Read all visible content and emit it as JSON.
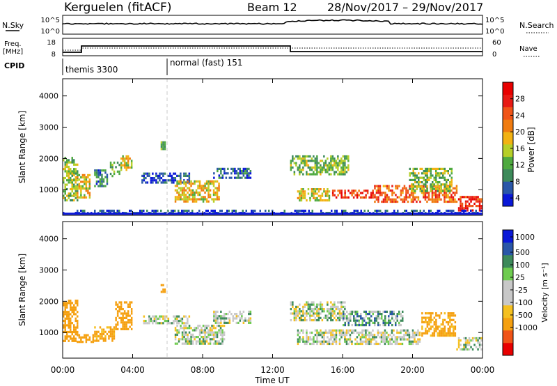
{
  "header": {
    "station": "Kerguelen (fitACF)",
    "beam": "Beam 12",
    "dates": "28/Nov/2017 – 29/Nov/2017"
  },
  "nsky": {
    "label": "N.Sky",
    "ticks": [
      "10^5",
      "10^0"
    ],
    "right_label": "N.Search",
    "right_ticks": [
      "10^5",
      "10^0"
    ]
  },
  "freq": {
    "label_line1": "Freq.",
    "label_line2": "[MHz]",
    "ticks": [
      "18",
      "8"
    ],
    "right_label": "Nave",
    "right_ticks": [
      "60",
      "0"
    ]
  },
  "cpid": {
    "label": "CPID",
    "modes": [
      "themis 3300",
      "normal (fast) 151"
    ]
  },
  "colors": {
    "power": [
      "#0a18d8",
      "#2a57a8",
      "#3d8a5a",
      "#4faa40",
      "#b6cf28",
      "#f2b212",
      "#f07c10",
      "#f05418",
      "#e81a14",
      "#e80000"
    ],
    "velocity": [
      "#e80000",
      "#f05418",
      "#f5a010",
      "#f5c020",
      "#c8c8c8",
      "#c8c8c8",
      "#6fcc50",
      "#3d8a5a",
      "#2a57a8",
      "#0a18d8"
    ]
  },
  "chart_data": [
    {
      "type": "heatmap",
      "name": "power",
      "ylabel": "Slant Range [km]",
      "xlabel": "Time UT",
      "x_ticks": [
        "00:00",
        "04:00",
        "08:00",
        "12:00",
        "16:00",
        "20:00",
        "00:00"
      ],
      "x_range_hours": [
        0,
        24
      ],
      "y_ticks": [
        1000,
        2000,
        3000,
        4000
      ],
      "ylim": [
        180,
        4550
      ],
      "colorbar": {
        "label": "Power [dB]",
        "ticks": [
          4,
          8,
          12,
          16,
          20,
          24,
          28
        ]
      },
      "regions": [
        {
          "t": [
            0.0,
            0.9
          ],
          "r": [
            600,
            2050
          ],
          "v": 14
        },
        {
          "t": [
            0.6,
            1.6
          ],
          "r": [
            650,
            1500
          ],
          "v": 18
        },
        {
          "t": [
            1.8,
            2.6
          ],
          "r": [
            1050,
            1650
          ],
          "v": 9
        },
        {
          "t": [
            2.7,
            3.3
          ],
          "r": [
            1400,
            1900
          ],
          "v": 12
        },
        {
          "t": [
            3.3,
            4.0
          ],
          "r": [
            1550,
            2100
          ],
          "v": 16
        },
        {
          "t": [
            5.6,
            5.9
          ],
          "r": [
            2250,
            2550
          ],
          "v": 12
        },
        {
          "t": [
            4.5,
            7.3
          ],
          "r": [
            1150,
            1550
          ],
          "v": 6
        },
        {
          "t": [
            6.4,
            9.0
          ],
          "r": [
            550,
            1300
          ],
          "v": 18
        },
        {
          "t": [
            8.6,
            10.8
          ],
          "r": [
            1300,
            1700
          ],
          "v": 7
        },
        {
          "t": [
            13.0,
            16.4
          ],
          "r": [
            1400,
            2100
          ],
          "v": 13
        },
        {
          "t": [
            13.4,
            15.3
          ],
          "r": [
            600,
            1050
          ],
          "v": 16
        },
        {
          "t": [
            15.4,
            17.8
          ],
          "r": [
            650,
            1000
          ],
          "v": 26
        },
        {
          "t": [
            17.8,
            22.6
          ],
          "r": [
            550,
            1150
          ],
          "v": 23
        },
        {
          "t": [
            19.8,
            22.3
          ],
          "r": [
            900,
            1700
          ],
          "v": 14
        },
        {
          "t": [
            22.6,
            24.0
          ],
          "r": [
            300,
            800
          ],
          "v": 27
        },
        {
          "t": [
            0.0,
            24.0
          ],
          "r": [
            200,
            360
          ],
          "v": 6
        }
      ]
    },
    {
      "type": "heatmap",
      "name": "velocity",
      "ylabel": "Slant Range [km]",
      "xlabel": "Time UT",
      "x_ticks": [
        "00:00",
        "04:00",
        "08:00",
        "12:00",
        "16:00",
        "20:00",
        "00:00"
      ],
      "x_range_hours": [
        0,
        24
      ],
      "y_ticks": [
        1000,
        2000,
        3000,
        4000
      ],
      "ylim": [
        180,
        4550
      ],
      "colorbar": {
        "label": "Velocity [m s⁻¹]",
        "ticks": [
          1000,
          500,
          100,
          25,
          -25,
          -100,
          -500,
          -1000
        ]
      },
      "regions": [
        {
          "t": [
            0.0,
            0.9
          ],
          "r": [
            650,
            2050
          ],
          "v": -300
        },
        {
          "t": [
            0.8,
            1.8
          ],
          "r": [
            650,
            950
          ],
          "v": -400
        },
        {
          "t": [
            1.8,
            3.0
          ],
          "r": [
            700,
            1200
          ],
          "v": -150
        },
        {
          "t": [
            3.0,
            4.0
          ],
          "r": [
            1050,
            2000
          ],
          "v": -400
        },
        {
          "t": [
            5.6,
            5.9
          ],
          "r": [
            2250,
            2550
          ],
          "v": -400
        },
        {
          "t": [
            4.6,
            7.3
          ],
          "r": [
            1200,
            1550
          ],
          "v": 0
        },
        {
          "t": [
            6.4,
            9.3
          ],
          "r": [
            550,
            1250
          ],
          "v": 0
        },
        {
          "t": [
            8.6,
            10.8
          ],
          "r": [
            1250,
            1700
          ],
          "v": 0
        },
        {
          "t": [
            13.0,
            16.2
          ],
          "r": [
            1300,
            2000
          ],
          "v": 0
        },
        {
          "t": [
            13.4,
            20.5
          ],
          "r": [
            600,
            1100
          ],
          "v": 0
        },
        {
          "t": [
            16.0,
            19.5
          ],
          "r": [
            1150,
            1700
          ],
          "v": 60
        },
        {
          "t": [
            20.5,
            22.5
          ],
          "r": [
            850,
            1650
          ],
          "v": -150
        },
        {
          "t": [
            22.5,
            24.0
          ],
          "r": [
            400,
            850
          ],
          "v": 0
        }
      ]
    }
  ]
}
